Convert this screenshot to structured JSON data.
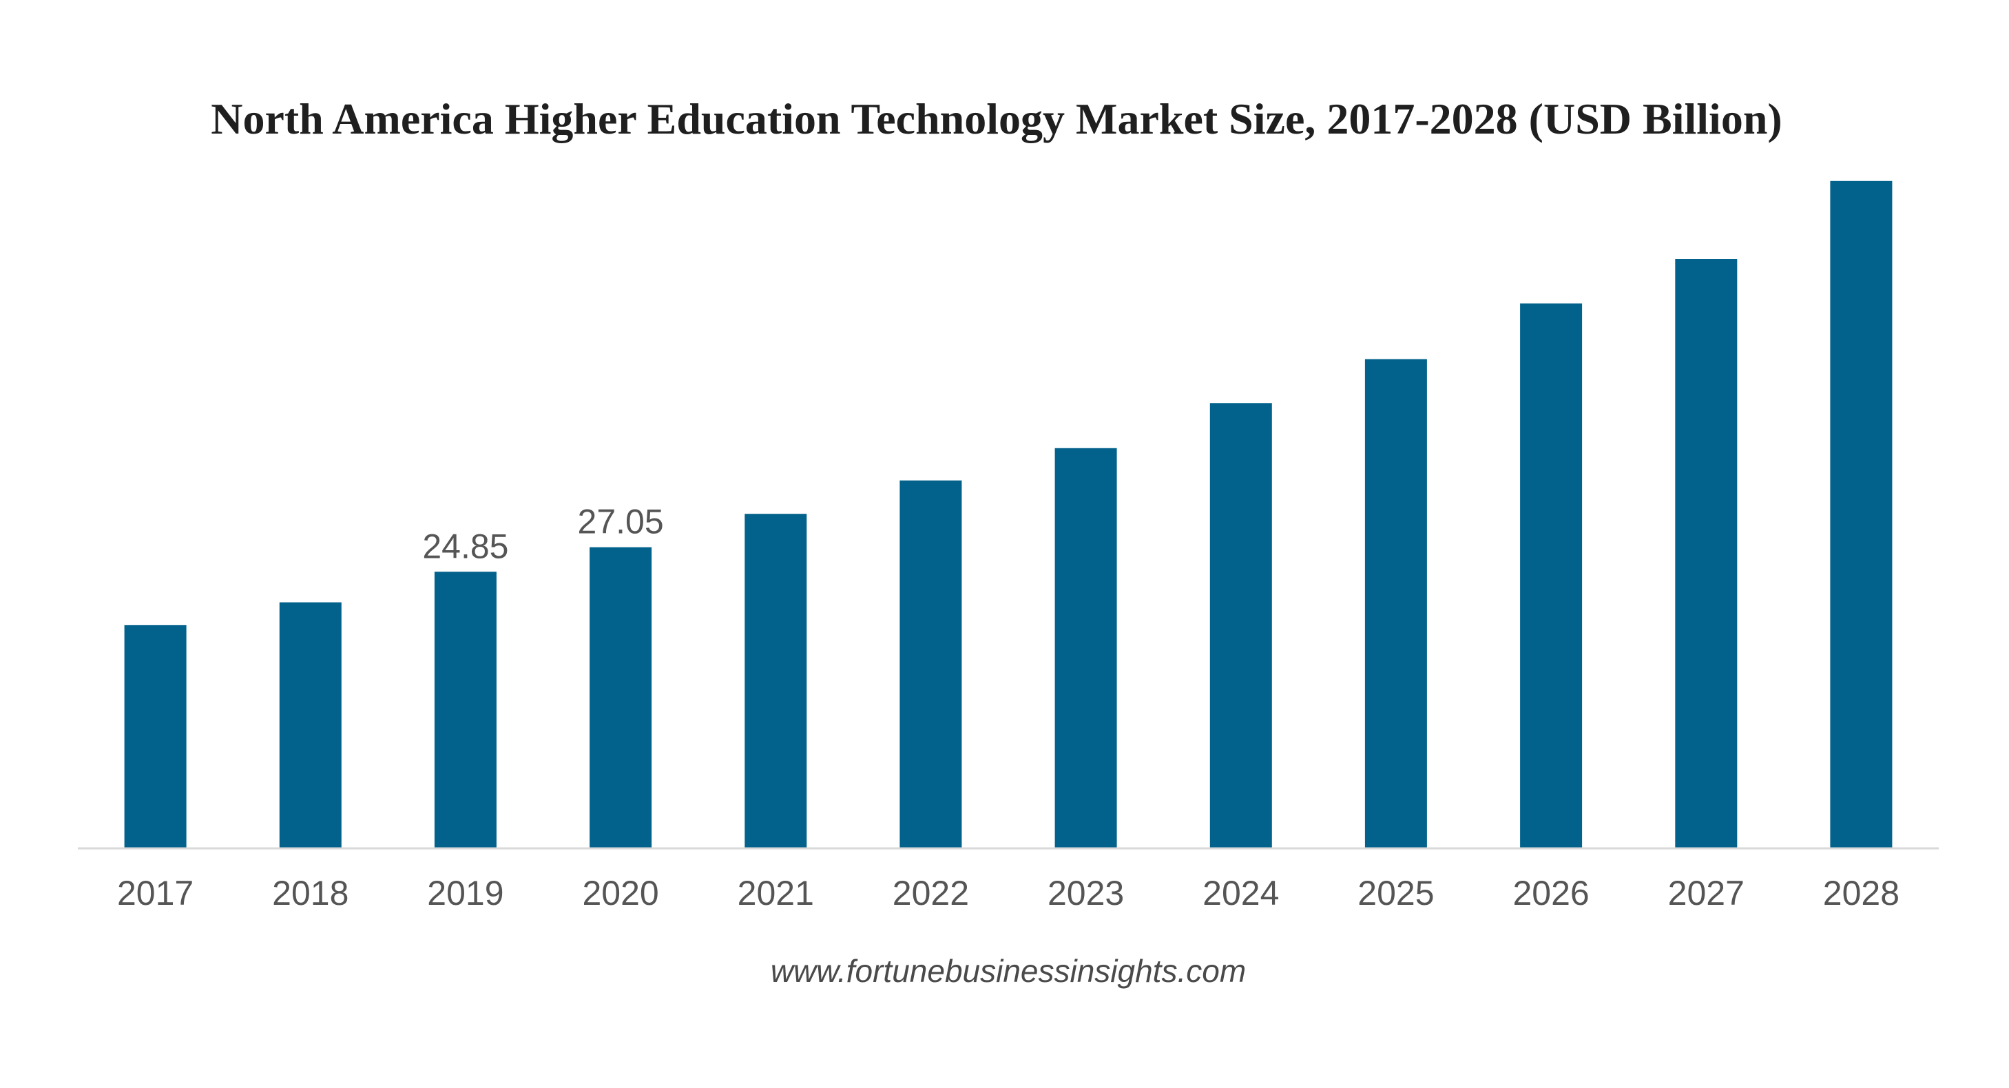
{
  "chart_data": {
    "type": "bar",
    "title": "North America Higher Education Technology Market Size, 2017-2028 (USD Billion)",
    "xlabel": "",
    "ylabel": "",
    "categories": [
      "2017",
      "2018",
      "2019",
      "2020",
      "2021",
      "2022",
      "2023",
      "2024",
      "2025",
      "2026",
      "2027",
      "2028"
    ],
    "values": [
      20.05,
      22.1,
      24.85,
      27.05,
      30.05,
      33.05,
      35.95,
      40.0,
      43.95,
      48.95,
      52.95,
      59.95
    ],
    "data_labels": {
      "2019": "24.85",
      "2020": "27.05"
    },
    "ylim": [
      0,
      60
    ],
    "grid": false,
    "legend": "none",
    "bar_color": "#02628c",
    "axis_color": "#d9d9d9"
  },
  "source": "www.fortunebusinessinsights.com"
}
